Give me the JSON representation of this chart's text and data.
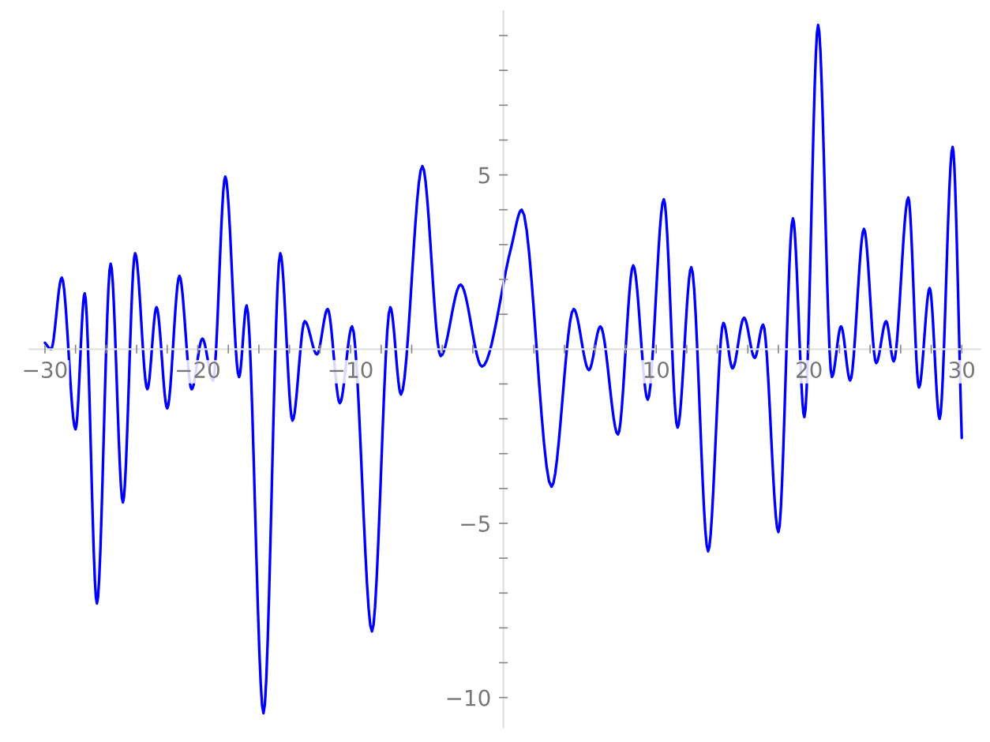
{
  "chart_data": {
    "type": "line",
    "x": [
      -30,
      -29.6,
      -28.9,
      -28.0,
      -27.4,
      -26.6,
      -25.7,
      -24.9,
      -24.1,
      -23.3,
      -22.7,
      -22.0,
      -21.2,
      -20.4,
      -19.7,
      -19.0,
      -18.2,
      -17.3,
      -16.8,
      -15.7,
      -14.6,
      -13.8,
      -13.0,
      -12.2,
      -11.5,
      -10.7,
      -9.9,
      -8.6,
      -7.4,
      -6.7,
      -5.3,
      -4.1,
      -2.8,
      -1.4,
      0.5,
      1.2,
      3.15,
      4.6,
      5.6,
      6.35,
      7.5,
      8.5,
      9.45,
      10.5,
      11.4,
      12.3,
      13.4,
      14.4,
      15.0,
      15.75,
      16.45,
      17.0,
      18.0,
      18.95,
      19.7,
      20.6,
      21.5,
      22.1,
      22.7,
      23.6,
      24.4,
      25.05,
      25.55,
      26.5,
      27.2,
      27.9,
      28.55,
      29.4,
      30
    ],
    "series": [
      {
        "color": "#0000ff",
        "values": [
          0.18,
          0,
          2.05,
          -2.3,
          1.6,
          -7.3,
          2.45,
          -4.4,
          2.75,
          -1.15,
          1.2,
          -1.7,
          2.1,
          -1.15,
          0.3,
          -0.9,
          4.95,
          -0.8,
          1.25,
          -10.45,
          2.75,
          -2.05,
          0.8,
          -0.15,
          1.15,
          -1.55,
          0.65,
          -8.1,
          1.2,
          -1.3,
          5.25,
          -0.2,
          1.85,
          -0.5,
          2.9,
          4.0,
          -3.95,
          1.15,
          -0.6,
          0.65,
          -2.45,
          2.4,
          -1.45,
          4.3,
          -2.25,
          2.35,
          -5.8,
          0.75,
          -0.55,
          0.9,
          -0.25,
          0.7,
          -5.25,
          3.75,
          -1.95,
          9.3,
          -0.8,
          0.65,
          -0.9,
          3.45,
          -0.4,
          0.8,
          -0.35,
          4.35,
          -1.1,
          1.75,
          -2.0,
          5.8,
          -2.55
        ]
      }
    ],
    "xlim": [
      -31,
      31.2
    ],
    "ylim": [
      -10.85,
      9.7
    ],
    "xticks": [
      {
        "value": -30,
        "label": "−30"
      },
      {
        "value": -28,
        "label": null
      },
      {
        "value": -26,
        "label": null
      },
      {
        "value": -24,
        "label": null
      },
      {
        "value": -22,
        "label": null
      },
      {
        "value": -20,
        "label": "−20"
      },
      {
        "value": -18,
        "label": null
      },
      {
        "value": -16,
        "label": null
      },
      {
        "value": -14,
        "label": null
      },
      {
        "value": -12,
        "label": null
      },
      {
        "value": -10,
        "label": "−10"
      },
      {
        "value": -8,
        "label": null
      },
      {
        "value": -6,
        "label": null
      },
      {
        "value": -4,
        "label": null
      },
      {
        "value": -2,
        "label": null
      },
      {
        "value": 2,
        "label": null
      },
      {
        "value": 4,
        "label": null
      },
      {
        "value": 6,
        "label": null
      },
      {
        "value": 8,
        "label": null
      },
      10,
      {
        "value": 12,
        "label": null
      },
      {
        "value": 14,
        "label": null
      },
      {
        "value": 16,
        "label": null
      },
      {
        "value": 18,
        "label": null
      },
      20,
      {
        "value": 22,
        "label": null
      },
      {
        "value": 24,
        "label": null
      },
      {
        "value": 26,
        "label": null
      },
      {
        "value": 28,
        "label": null
      },
      30
    ],
    "yticks": [
      {
        "value": -10,
        "label": "−10"
      },
      {
        "value": -9,
        "label": null
      },
      {
        "value": -8,
        "label": null
      },
      {
        "value": -7,
        "label": null
      },
      {
        "value": -6,
        "label": null
      },
      {
        "value": -5,
        "label": "−5"
      },
      {
        "value": -4,
        "label": null
      },
      {
        "value": -3,
        "label": null
      },
      {
        "value": -2,
        "label": null
      },
      {
        "value": -1,
        "label": null
      },
      {
        "value": 1,
        "label": null
      },
      {
        "value": 2,
        "label": null
      },
      {
        "value": 3,
        "label": null
      },
      {
        "value": 4,
        "label": null
      },
      5,
      {
        "value": 6,
        "label": null
      },
      {
        "value": 7,
        "label": null
      },
      {
        "value": 8,
        "label": null
      },
      {
        "value": 9,
        "label": null
      }
    ],
    "grid": false,
    "marker": "none",
    "line_style": "solid"
  }
}
